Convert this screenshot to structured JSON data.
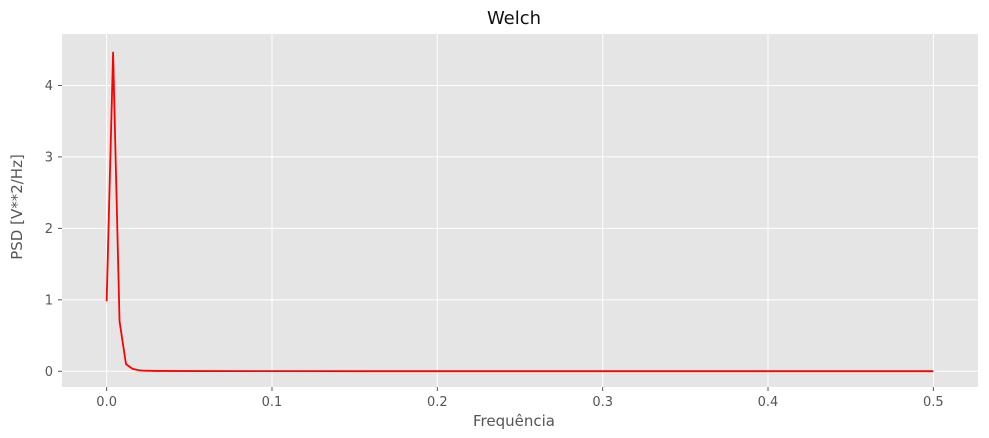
{
  "chart_data": {
    "type": "line",
    "title": "Welch",
    "xlabel": "Frequência",
    "ylabel": "PSD [V**2/Hz]",
    "xlim": [
      -0.027,
      0.527
    ],
    "ylim": [
      -0.22,
      4.72
    ],
    "xticks": [
      0.0,
      0.1,
      0.2,
      0.3,
      0.4,
      0.5
    ],
    "xtick_labels": [
      "0.0",
      "0.1",
      "0.2",
      "0.3",
      "0.4",
      "0.5"
    ],
    "yticks": [
      0,
      1,
      2,
      3,
      4
    ],
    "ytick_labels": [
      "0",
      "1",
      "2",
      "3",
      "4"
    ],
    "grid": true,
    "background": "#e5e5e5",
    "series": [
      {
        "color": "#ff0000",
        "x": [
          0.0,
          0.0039,
          0.0078,
          0.0117,
          0.0156,
          0.0195,
          0.0234,
          0.03,
          0.05,
          0.1,
          0.2,
          0.3,
          0.4,
          0.5
        ],
        "y": [
          0.98,
          4.46,
          0.7,
          0.1,
          0.035,
          0.015,
          0.008,
          0.005,
          0.003,
          0.002,
          0.001,
          0.001,
          0.001,
          0.001
        ]
      }
    ]
  }
}
